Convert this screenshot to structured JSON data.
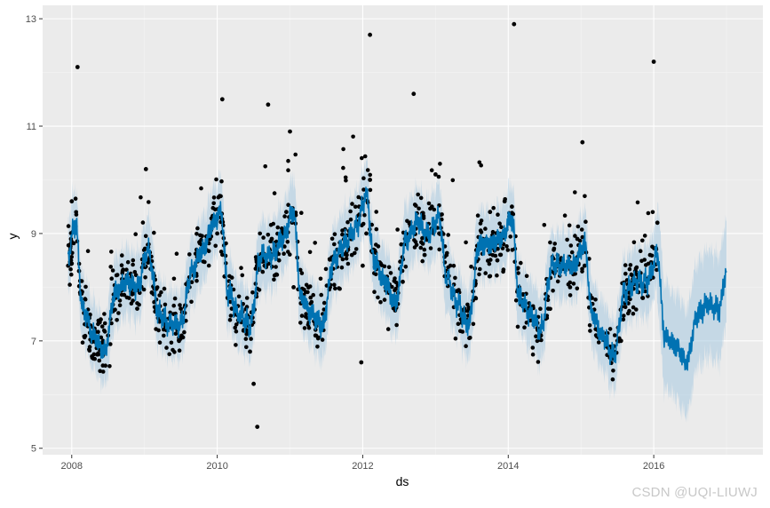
{
  "chart_data": {
    "type": "scatter",
    "xlabel": "ds",
    "ylabel": "y",
    "xlim": [
      2007.6,
      2017.5
    ],
    "ylim": [
      4.88,
      13.25
    ],
    "x_ticks": [
      2008,
      2010,
      2012,
      2014,
      2016
    ],
    "x_tick_labels": [
      "2008",
      "2010",
      "2012",
      "2014",
      "2016"
    ],
    "y_ticks": [
      5,
      7,
      9,
      11,
      13
    ],
    "y_tick_labels": [
      "5",
      "7",
      "9",
      "11",
      "13"
    ],
    "grid": true,
    "panel_color": "#ebebeb",
    "point_color": "#000000",
    "forecast_color": "#0072b2",
    "interval_color": "#a6c8e0",
    "observed_range": [
      2007.95,
      2016.05
    ],
    "forecast_range": [
      2007.95,
      2017.0
    ],
    "series": [
      {
        "role": "forecast",
        "x": [
          2007.95,
          2008.05,
          2008.15,
          2008.3,
          2008.45,
          2008.6,
          2008.75,
          2008.9,
          2009.05,
          2009.2,
          2009.35,
          2009.5,
          2009.65,
          2009.8,
          2009.95,
          2010.05,
          2010.15,
          2010.3,
          2010.45,
          2010.6,
          2010.75,
          2010.9,
          2011.05,
          2011.15,
          2011.3,
          2011.45,
          2011.6,
          2011.75,
          2011.9,
          2012.05,
          2012.15,
          2012.3,
          2012.45,
          2012.6,
          2012.75,
          2012.9,
          2013.05,
          2013.15,
          2013.3,
          2013.45,
          2013.6,
          2013.75,
          2013.9,
          2014.05,
          2014.15,
          2014.3,
          2014.45,
          2014.6,
          2014.75,
          2014.9,
          2015.05,
          2015.15,
          2015.3,
          2015.45,
          2015.6,
          2015.75,
          2015.9,
          2016.05,
          2016.15,
          2016.3,
          2016.45,
          2016.6,
          2016.75,
          2016.9,
          2017.0
        ],
        "y": [
          8.6,
          9.2,
          7.6,
          7.1,
          6.8,
          7.9,
          8.1,
          8.0,
          8.7,
          7.5,
          7.3,
          7.3,
          8.3,
          8.7,
          9.2,
          9.4,
          7.9,
          7.5,
          7.3,
          8.6,
          8.6,
          8.9,
          9.4,
          7.8,
          7.5,
          7.3,
          8.5,
          8.8,
          9.1,
          9.7,
          8.5,
          8.1,
          7.7,
          8.9,
          9.2,
          9.0,
          9.3,
          8.2,
          7.7,
          7.3,
          8.8,
          8.8,
          8.9,
          9.3,
          7.8,
          7.5,
          7.2,
          8.4,
          8.4,
          8.4,
          8.8,
          7.5,
          7.1,
          6.7,
          7.9,
          8.1,
          8.1,
          8.6,
          7.1,
          6.9,
          6.6,
          7.5,
          7.7,
          7.6,
          8.3
        ]
      },
      {
        "role": "observed",
        "x": [
          2007.95,
          2008.0,
          2008.05,
          2008.1,
          2008.15,
          2008.2,
          2008.3,
          2008.4,
          2008.5,
          2008.6,
          2008.7,
          2008.8,
          2008.9,
          2009.0,
          2009.1,
          2009.2,
          2009.3,
          2009.4,
          2009.5,
          2009.6,
          2009.7,
          2009.8,
          2009.9,
          2010.0,
          2010.05,
          2010.1,
          2010.2,
          2010.3,
          2010.4,
          2010.45,
          2010.5,
          2010.55,
          2010.65,
          2010.75,
          2010.85,
          2010.95,
          2011.05,
          2011.15,
          2011.25,
          2011.35,
          2011.45,
          2011.55,
          2011.65,
          2011.75,
          2011.85,
          2011.95,
          2012.0,
          2012.05,
          2012.1,
          2012.15,
          2012.25,
          2012.35,
          2012.45,
          2012.55,
          2012.65,
          2012.75,
          2012.85,
          2012.95,
          2013.05,
          2013.15,
          2013.25,
          2013.35,
          2013.45,
          2013.55,
          2013.65,
          2013.75,
          2013.85,
          2013.95,
          2014.05,
          2014.15,
          2014.25,
          2014.35,
          2014.45,
          2014.55,
          2014.65,
          2014.75,
          2014.85,
          2014.95,
          2015.05,
          2015.15,
          2015.25,
          2015.35,
          2015.45,
          2015.55,
          2015.65,
          2015.75,
          2015.85,
          2015.95,
          2016.05,
          2008.08,
          2009.02,
          2010.07,
          2010.7,
          2011.0,
          2011.98,
          2012.1,
          2012.7,
          2013.0,
          2014.08,
          2015.02,
          2016.0
        ],
        "y": [
          8.4,
          9.6,
          9.1,
          8.3,
          7.7,
          7.3,
          7.0,
          7.4,
          7.1,
          7.8,
          8.3,
          8.0,
          7.6,
          8.6,
          7.9,
          7.4,
          7.2,
          7.5,
          7.6,
          8.1,
          8.4,
          8.7,
          8.9,
          9.0,
          9.3,
          8.2,
          7.6,
          7.4,
          7.2,
          6.8,
          6.2,
          5.4,
          8.4,
          8.9,
          8.5,
          9.4,
          8.0,
          7.7,
          7.3,
          7.1,
          7.5,
          8.0,
          8.7,
          8.9,
          8.6,
          9.5,
          8.4,
          9.0,
          10.0,
          8.7,
          8.2,
          8.0,
          7.6,
          8.1,
          9.0,
          9.2,
          8.6,
          9.5,
          9.0,
          8.3,
          7.9,
          7.4,
          7.3,
          7.8,
          8.9,
          9.4,
          8.5,
          9.6,
          9.5,
          8.0,
          7.6,
          7.3,
          7.1,
          7.6,
          8.3,
          8.5,
          8.0,
          8.9,
          8.4,
          7.8,
          7.2,
          7.0,
          6.8,
          7.0,
          7.7,
          8.3,
          7.8,
          8.6,
          9.2,
          12.1,
          10.2,
          11.5,
          11.4,
          10.9,
          6.6,
          12.7,
          11.6,
          10.1,
          12.9,
          10.7,
          12.2
        ]
      }
    ]
  },
  "watermark_text": "CSDN @UQI-LIUWJ"
}
